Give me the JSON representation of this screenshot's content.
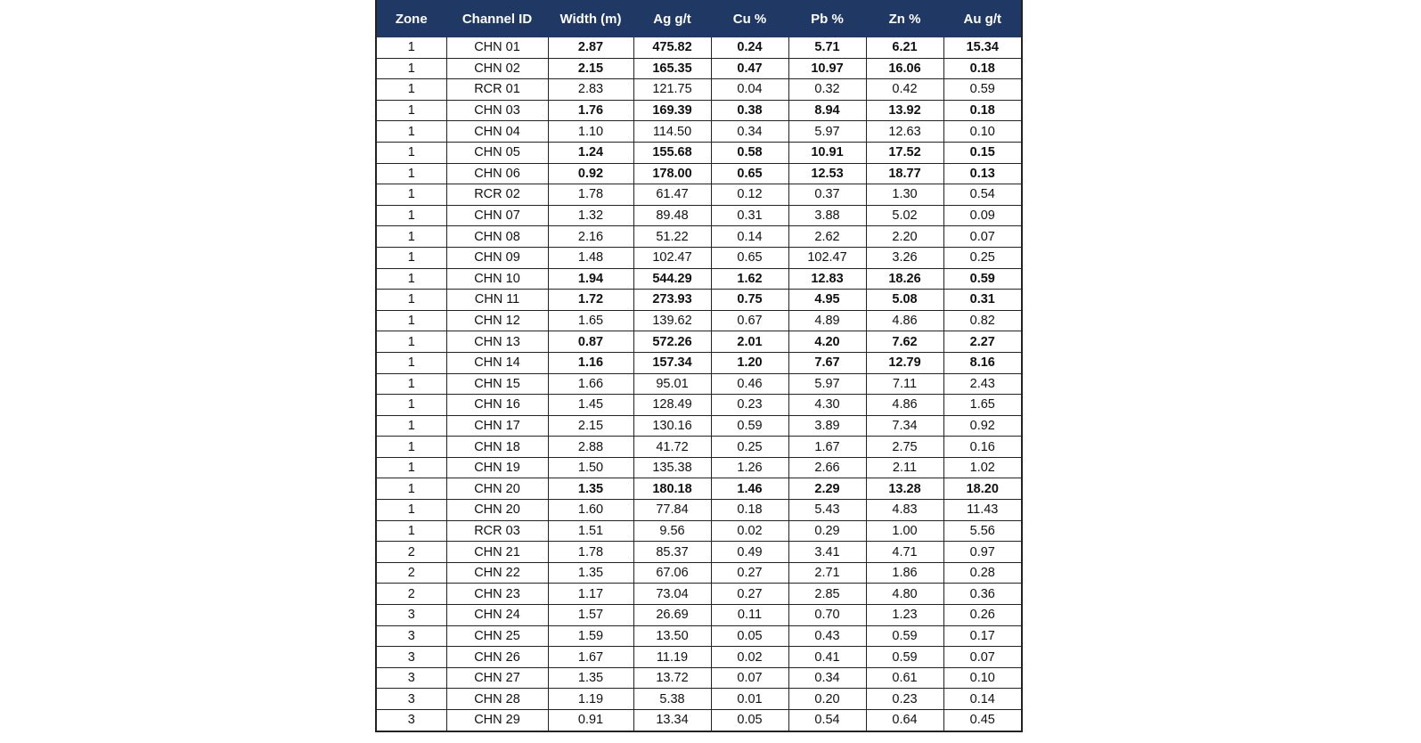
{
  "table": {
    "header_color": "#1f3864",
    "columns": [
      "Zone",
      "Channel ID",
      "Width (m)",
      "Ag g/t",
      "Cu %",
      "Pb %",
      "Zn %",
      "Au g/t"
    ],
    "rows": [
      {
        "bold": true,
        "cells": [
          "1",
          "CHN 01",
          "2.87",
          "475.82",
          "0.24",
          "5.71",
          "6.21",
          "15.34"
        ]
      },
      {
        "bold": true,
        "cells": [
          "1",
          "CHN 02",
          "2.15",
          "165.35",
          "0.47",
          "10.97",
          "16.06",
          "0.18"
        ]
      },
      {
        "bold": false,
        "cells": [
          "1",
          "RCR 01",
          "2.83",
          "121.75",
          "0.04",
          "0.32",
          "0.42",
          "0.59"
        ]
      },
      {
        "bold": true,
        "cells": [
          "1",
          "CHN 03",
          "1.76",
          "169.39",
          "0.38",
          "8.94",
          "13.92",
          "0.18"
        ]
      },
      {
        "bold": false,
        "cells": [
          "1",
          "CHN 04",
          "1.10",
          "114.50",
          "0.34",
          "5.97",
          "12.63",
          "0.10"
        ]
      },
      {
        "bold": true,
        "cells": [
          "1",
          "CHN 05",
          "1.24",
          "155.68",
          "0.58",
          "10.91",
          "17.52",
          "0.15"
        ]
      },
      {
        "bold": true,
        "cells": [
          "1",
          "CHN 06",
          "0.92",
          "178.00",
          "0.65",
          "12.53",
          "18.77",
          "0.13"
        ]
      },
      {
        "bold": false,
        "cells": [
          "1",
          "RCR 02",
          "1.78",
          "61.47",
          "0.12",
          "0.37",
          "1.30",
          "0.54"
        ]
      },
      {
        "bold": false,
        "cells": [
          "1",
          "CHN 07",
          "1.32",
          "89.48",
          "0.31",
          "3.88",
          "5.02",
          "0.09"
        ]
      },
      {
        "bold": false,
        "cells": [
          "1",
          "CHN 08",
          "2.16",
          "51.22",
          "0.14",
          "2.62",
          "2.20",
          "0.07"
        ]
      },
      {
        "bold": false,
        "cells": [
          "1",
          "CHN 09",
          "1.48",
          "102.47",
          "0.65",
          "102.47",
          "3.26",
          "0.25"
        ]
      },
      {
        "bold": true,
        "cells": [
          "1",
          "CHN 10",
          "1.94",
          "544.29",
          "1.62",
          "12.83",
          "18.26",
          "0.59"
        ]
      },
      {
        "bold": true,
        "cells": [
          "1",
          "CHN 11",
          "1.72",
          "273.93",
          "0.75",
          "4.95",
          "5.08",
          "0.31"
        ]
      },
      {
        "bold": false,
        "cells": [
          "1",
          "CHN 12",
          "1.65",
          "139.62",
          "0.67",
          "4.89",
          "4.86",
          "0.82"
        ]
      },
      {
        "bold": true,
        "cells": [
          "1",
          "CHN 13",
          "0.87",
          "572.26",
          "2.01",
          "4.20",
          "7.62",
          "2.27"
        ]
      },
      {
        "bold": true,
        "cells": [
          "1",
          "CHN 14",
          "1.16",
          "157.34",
          "1.20",
          "7.67",
          "12.79",
          "8.16"
        ]
      },
      {
        "bold": false,
        "cells": [
          "1",
          "CHN 15",
          "1.66",
          "95.01",
          "0.46",
          "5.97",
          "7.11",
          "2.43"
        ]
      },
      {
        "bold": false,
        "cells": [
          "1",
          "CHN 16",
          "1.45",
          "128.49",
          "0.23",
          "4.30",
          "4.86",
          "1.65"
        ]
      },
      {
        "bold": false,
        "cells": [
          "1",
          "CHN 17",
          "2.15",
          "130.16",
          "0.59",
          "3.89",
          "7.34",
          "0.92"
        ]
      },
      {
        "bold": false,
        "cells": [
          "1",
          "CHN 18",
          "2.88",
          "41.72",
          "0.25",
          "1.67",
          "2.75",
          "0.16"
        ]
      },
      {
        "bold": false,
        "cells": [
          "1",
          "CHN 19",
          "1.50",
          "135.38",
          "1.26",
          "2.66",
          "2.11",
          "1.02"
        ]
      },
      {
        "bold": true,
        "cells": [
          "1",
          "CHN 20",
          "1.35",
          "180.18",
          "1.46",
          "2.29",
          "13.28",
          "18.20"
        ]
      },
      {
        "bold": false,
        "cells": [
          "1",
          "CHN 20",
          "1.60",
          "77.84",
          "0.18",
          "5.43",
          "4.83",
          "11.43"
        ]
      },
      {
        "bold": false,
        "cells": [
          "1",
          "RCR 03",
          "1.51",
          "9.56",
          "0.02",
          "0.29",
          "1.00",
          "5.56"
        ]
      },
      {
        "bold": false,
        "cells": [
          "2",
          "CHN 21",
          "1.78",
          "85.37",
          "0.49",
          "3.41",
          "4.71",
          "0.97"
        ]
      },
      {
        "bold": false,
        "cells": [
          "2",
          "CHN 22",
          "1.35",
          "67.06",
          "0.27",
          "2.71",
          "1.86",
          "0.28"
        ]
      },
      {
        "bold": false,
        "cells": [
          "2",
          "CHN 23",
          "1.17",
          "73.04",
          "0.27",
          "2.85",
          "4.80",
          "0.36"
        ]
      },
      {
        "bold": false,
        "cells": [
          "3",
          "CHN 24",
          "1.57",
          "26.69",
          "0.11",
          "0.70",
          "1.23",
          "0.26"
        ]
      },
      {
        "bold": false,
        "cells": [
          "3",
          "CHN 25",
          "1.59",
          "13.50",
          "0.05",
          "0.43",
          "0.59",
          "0.17"
        ]
      },
      {
        "bold": false,
        "cells": [
          "3",
          "CHN 26",
          "1.67",
          "11.19",
          "0.02",
          "0.41",
          "0.59",
          "0.07"
        ]
      },
      {
        "bold": false,
        "cells": [
          "3",
          "CHN 27",
          "1.35",
          "13.72",
          "0.07",
          "0.34",
          "0.61",
          "0.10"
        ]
      },
      {
        "bold": false,
        "cells": [
          "3",
          "CHN 28",
          "1.19",
          "5.38",
          "0.01",
          "0.20",
          "0.23",
          "0.14"
        ]
      },
      {
        "bold": false,
        "cells": [
          "3",
          "CHN 29",
          "0.91",
          "13.34",
          "0.05",
          "0.54",
          "0.64",
          "0.45"
        ]
      }
    ]
  }
}
